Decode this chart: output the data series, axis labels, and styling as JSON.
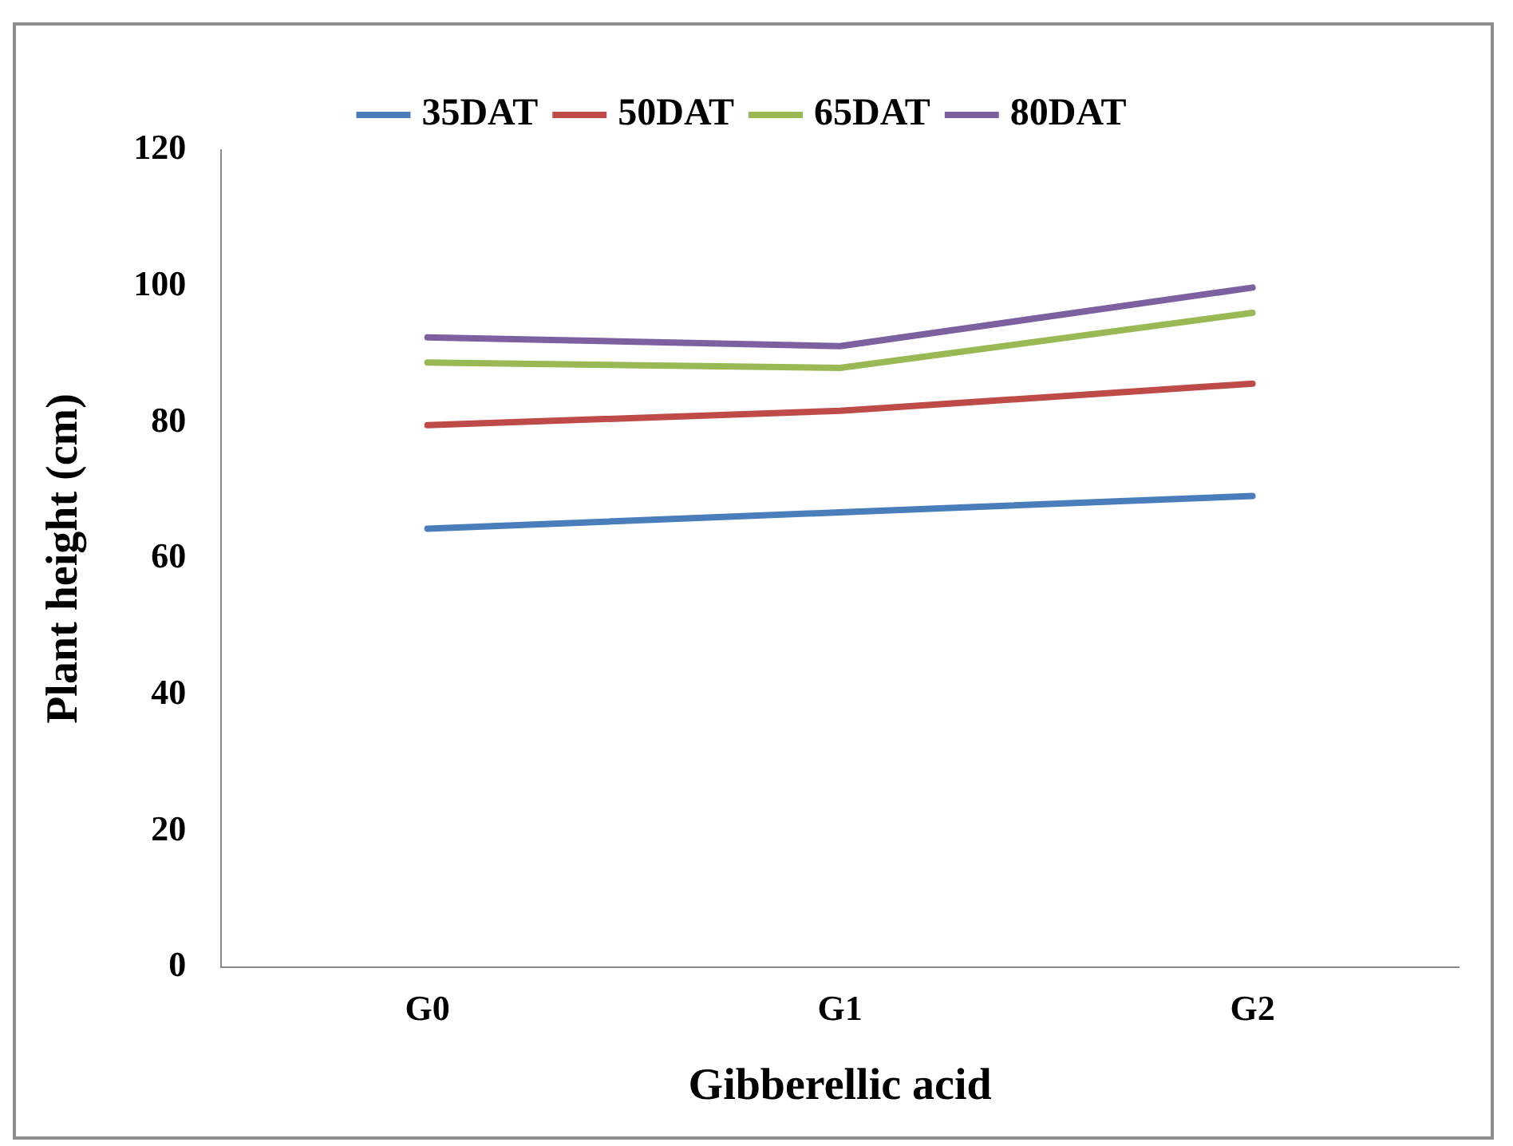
{
  "chart_data": {
    "type": "line",
    "xlabel": "Gibberellic acid",
    "ylabel": "Plant height (cm)",
    "categories": [
      "G0",
      "G1",
      "G2"
    ],
    "series": [
      {
        "name": "35DAT",
        "color": "#4a7ebb",
        "values": [
          64.4,
          66.8,
          69.2
        ]
      },
      {
        "name": "50DAT",
        "color": "#be4b48",
        "values": [
          79.6,
          81.7,
          85.7
        ]
      },
      {
        "name": "65DAT",
        "color": "#98b954",
        "values": [
          88.8,
          88.0,
          96.1
        ]
      },
      {
        "name": "80DAT",
        "color": "#7d60a0",
        "values": [
          92.5,
          91.2,
          99.8
        ]
      }
    ],
    "ylim": [
      0,
      120
    ],
    "yticks": [
      0,
      20,
      40,
      60,
      80,
      100,
      120
    ],
    "grid": false,
    "legend": "top",
    "marker": "none",
    "line_style": "solid"
  }
}
